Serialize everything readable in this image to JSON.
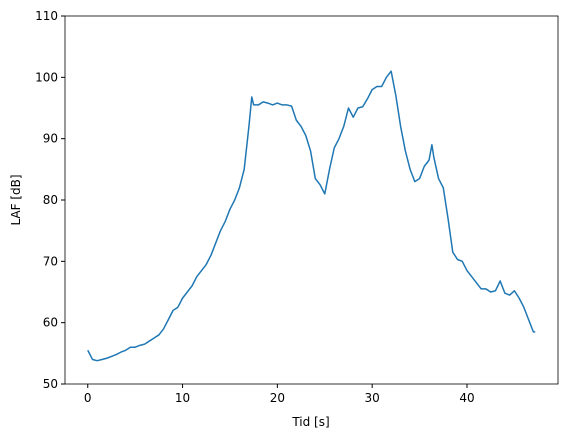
{
  "chart_data": {
    "type": "line",
    "xlabel": "Tid [s]",
    "ylabel": "LAF [dB]",
    "x": [
      0,
      0.5,
      1,
      1.5,
      2,
      2.5,
      3,
      3.5,
      4,
      4.5,
      5,
      5.5,
      6,
      6.5,
      7,
      7.5,
      8,
      8.5,
      9,
      9.5,
      10,
      10.5,
      11,
      11.5,
      12,
      12.5,
      13,
      13.5,
      14,
      14.5,
      15,
      15.5,
      16,
      16.5,
      17,
      17.3,
      17.5,
      18,
      18.5,
      19,
      19.5,
      20,
      20.5,
      21,
      21.5,
      22,
      22.5,
      23,
      23.5,
      24,
      24.5,
      25,
      25.5,
      26,
      26.5,
      27,
      27.5,
      28,
      28.5,
      29,
      29.5,
      30,
      30.5,
      31,
      31.5,
      32,
      32.5,
      33,
      33.5,
      34,
      34.5,
      35,
      35.5,
      36,
      36.3,
      36.5,
      37,
      37.5,
      38,
      38.5,
      39,
      39.5,
      40,
      40.5,
      41,
      41.5,
      42,
      42.5,
      43,
      43.5,
      44,
      44.5,
      45,
      45.5,
      46,
      46.5,
      47,
      47.2
    ],
    "series": [
      {
        "name": "LAF",
        "color": "#1f77b4",
        "values": [
          55.5,
          54,
          53.8,
          54,
          54.2,
          54.5,
          54.8,
          55.2,
          55.5,
          56,
          56,
          56.3,
          56.5,
          57,
          57.5,
          58,
          59,
          60.5,
          62,
          62.5,
          64,
          65,
          66,
          67.5,
          68.5,
          69.5,
          71,
          73,
          75,
          76.5,
          78.5,
          80,
          82,
          85,
          92,
          96.8,
          95.5,
          95.5,
          96,
          95.8,
          95.5,
          95.8,
          95.5,
          95.5,
          95.3,
          93,
          92,
          90.5,
          88,
          83.5,
          82.5,
          81,
          85,
          88.5,
          90,
          92,
          95,
          93.5,
          95,
          95.2,
          96.5,
          98,
          98.5,
          98.5,
          100,
          101,
          97,
          92,
          88,
          85,
          83,
          83.5,
          85.5,
          86.5,
          89,
          87,
          83.5,
          82,
          77,
          71.5,
          70.3,
          70,
          68.5,
          67.5,
          66.5,
          65.5,
          65.5,
          65,
          65.2,
          66.8,
          64.8,
          64.5,
          65.2,
          64,
          62.5,
          60.5,
          58.5,
          58.5
        ]
      }
    ],
    "xlim": [
      -2.4,
      49.6
    ],
    "ylim": [
      50,
      110
    ],
    "xticks": [
      0,
      10,
      20,
      30,
      40
    ],
    "yticks": [
      50,
      60,
      70,
      80,
      90,
      100,
      110
    ]
  }
}
